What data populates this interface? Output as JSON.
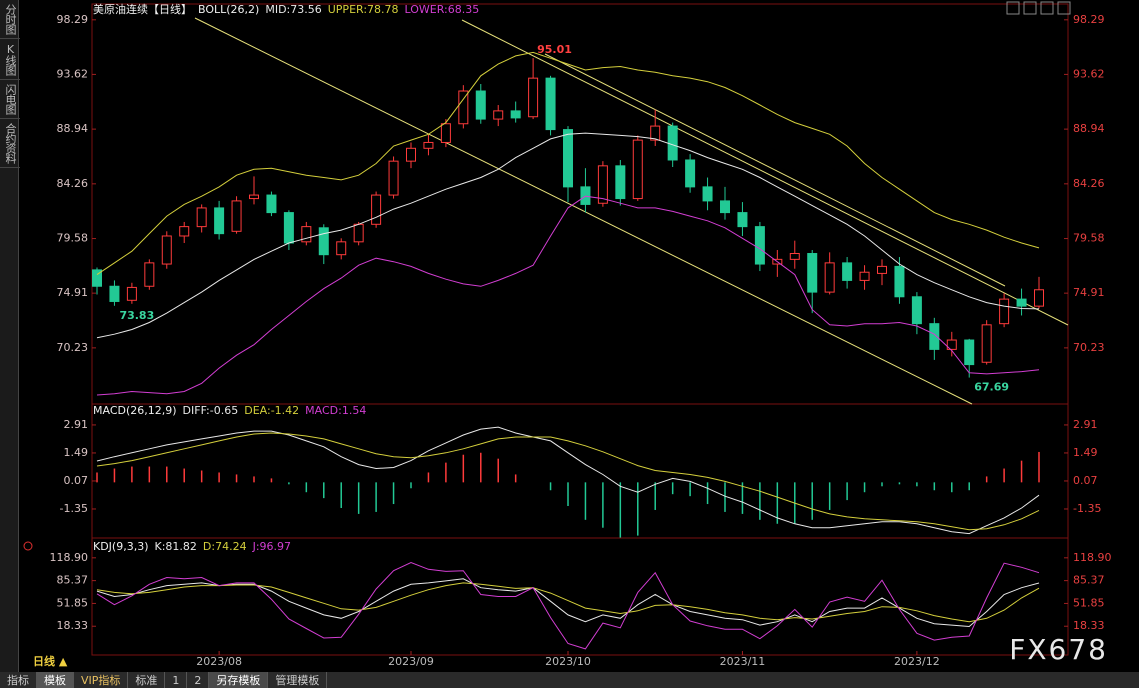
{
  "ui": {
    "sidebar": [
      "分时图",
      "K线图",
      "闪电图",
      "合约资料"
    ],
    "period": "日线 ▲",
    "tabs": [
      "指标",
      "模板",
      "VIP指标",
      "标准",
      "1",
      "2",
      "另存模板",
      "管理模板"
    ],
    "watermark": "FX678"
  },
  "chart_data": [
    {
      "type": "candlestick",
      "title": "美原油连续【日线】",
      "indicator": "BOLL(26,2)",
      "categories": [
        null,
        null,
        null,
        null,
        null,
        null,
        null,
        "2023/08",
        null,
        null,
        null,
        null,
        null,
        null,
        null,
        null,
        null,
        null,
        "2023/09",
        null,
        null,
        null,
        null,
        null,
        null,
        null,
        null,
        "2023/10",
        null,
        null,
        null,
        null,
        null,
        null,
        null,
        null,
        null,
        "2023/11",
        null,
        null,
        null,
        null,
        null,
        null,
        null,
        null,
        null,
        "2023/12",
        null,
        null,
        null,
        null,
        null,
        null,
        null
      ],
      "open": [
        76.9,
        75.5,
        74.3,
        75.5,
        77.4,
        79.8,
        80.6,
        82.2,
        80.2,
        83,
        83.3,
        81.8,
        79.3,
        80.5,
        78.2,
        79.3,
        80.8,
        83.3,
        86.2,
        87.3,
        87.8,
        89.4,
        92.2,
        89.8,
        90.5,
        90,
        93.3,
        88.9,
        84,
        82.6,
        85.8,
        83,
        88,
        89.2,
        86.3,
        84,
        82.8,
        81.8,
        80.6,
        77.4,
        77.8,
        78.3,
        75,
        77.5,
        76,
        76.6,
        77.2,
        74.6,
        72.3,
        70.1,
        70.9,
        69,
        72.3,
        74.4,
        73.8
      ],
      "high": [
        77.1,
        76,
        75.8,
        77.8,
        80.2,
        81,
        82.5,
        82.8,
        83.2,
        84.9,
        83.6,
        82,
        81,
        80.8,
        79.6,
        81,
        83.6,
        86.6,
        87.8,
        88.5,
        89.8,
        92.7,
        92.8,
        91,
        91.3,
        95.01,
        93.5,
        89.2,
        85.6,
        86.2,
        86.3,
        88.4,
        90.6,
        89.5,
        86.8,
        84.8,
        84,
        82.7,
        81,
        78.6,
        79.4,
        78.6,
        78.4,
        78,
        77.3,
        77.8,
        78,
        75,
        72.8,
        71.6,
        71,
        72.6,
        74.9,
        75.3,
        76.3
      ],
      "low": [
        74.8,
        73.83,
        74,
        75.2,
        77,
        79.2,
        80.1,
        79.5,
        80,
        82.5,
        81.5,
        78.6,
        79,
        77.4,
        77.8,
        79,
        80.5,
        83,
        85.6,
        86.7,
        87.4,
        89,
        89.4,
        89.2,
        89.5,
        89.8,
        88.4,
        82.7,
        81.8,
        82.3,
        82.4,
        82.8,
        87.5,
        85.7,
        83.5,
        82,
        81.2,
        79.8,
        76.8,
        76.3,
        77,
        73.2,
        74.8,
        75.3,
        75.2,
        75.6,
        74,
        71.4,
        69.2,
        69.5,
        67.69,
        68.8,
        72,
        73,
        73.6
      ],
      "close": [
        75.5,
        74.2,
        75.4,
        77.5,
        79.8,
        80.6,
        82.2,
        80,
        82.8,
        83.3,
        81.8,
        79.2,
        80.6,
        78.2,
        79.3,
        80.8,
        83.3,
        86.2,
        87.3,
        87.8,
        89.4,
        92.2,
        89.8,
        90.5,
        89.9,
        93.3,
        88.9,
        84,
        82.5,
        85.8,
        83,
        88,
        89.2,
        86.3,
        84,
        82.8,
        81.8,
        80.6,
        77.4,
        77.8,
        78.3,
        75,
        77.5,
        76,
        76.7,
        77.2,
        74.6,
        72.3,
        70.1,
        70.9,
        68.8,
        72.2,
        74.4,
        73.8,
        75.2
      ],
      "up_color": "#ff3b3b",
      "down_color": "#22c995",
      "ylim": [
        65.6,
        99.3
      ],
      "yticks": [
        98.29,
        93.62,
        88.94,
        84.26,
        79.58,
        74.91,
        70.23
      ],
      "series": [
        {
          "name": "MID:73.56",
          "color": "#e8e8e8",
          "values": [
            71.1,
            71.4,
            71.8,
            72.4,
            73.2,
            74.1,
            75,
            76,
            76.9,
            77.8,
            78.5,
            79.2,
            79.6,
            80,
            80.3,
            80.8,
            81.4,
            82.1,
            82.6,
            83.2,
            83.8,
            84.3,
            84.8,
            85.5,
            86.5,
            87.3,
            88.1,
            88.5,
            88.6,
            88.5,
            88.4,
            88.3,
            88.1,
            87.6,
            87.1,
            86.5,
            86,
            85.5,
            84.8,
            84,
            83.2,
            82.4,
            81.6,
            80.8,
            79.8,
            78.6,
            77.4,
            76.5,
            75.8,
            75.2,
            74.6,
            74.1,
            73.8,
            73.6,
            73.56
          ]
        },
        {
          "name": "UPPER:78.78",
          "color": "#d4cf3c",
          "values": [
            76.5,
            77.5,
            78.5,
            80,
            81.5,
            82.5,
            83.2,
            84,
            85,
            85.5,
            85.6,
            85.3,
            85,
            84.8,
            84.6,
            85,
            86,
            87.5,
            88,
            88.5,
            89.5,
            91.5,
            93.5,
            94.5,
            95.2,
            95.5,
            95,
            94.5,
            94,
            94.2,
            94.3,
            94,
            93.8,
            93.5,
            93.3,
            93,
            92.5,
            91.8,
            91,
            90.2,
            89.5,
            89,
            88.5,
            87.5,
            86,
            84.8,
            83.8,
            82.8,
            81.8,
            81.2,
            80.8,
            80.3,
            79.7,
            79.2,
            78.78
          ]
        },
        {
          "name": "LOWER:68.35",
          "color": "#d23ed2",
          "values": [
            66.2,
            66.3,
            66.5,
            66.4,
            66.3,
            66.5,
            67.2,
            68.5,
            69.6,
            70.5,
            71.8,
            73,
            74.2,
            75.3,
            76.2,
            77.3,
            77.9,
            77.6,
            77.2,
            76.6,
            76.1,
            75.7,
            75.5,
            76,
            76.6,
            77.3,
            79.8,
            82.2,
            83.2,
            83,
            82.6,
            82.2,
            82.2,
            81.9,
            81.5,
            81.1,
            80.5,
            79.6,
            78.7,
            77.6,
            76.5,
            73.5,
            72.2,
            72.1,
            72.3,
            72.3,
            72.4,
            72.1,
            71.4,
            70,
            68.1,
            68,
            68.1,
            68.2,
            68.35
          ]
        }
      ]
    },
    {
      "type": "macd",
      "indicator": "MACD(26,12,9)",
      "ylim": [
        -2.72,
        3.87
      ],
      "yticks": [
        2.91,
        1.49,
        0.07,
        -1.35
      ],
      "series": [
        {
          "name": "DIFF:-0.65",
          "color": "#e8e8e8",
          "values": [
            1.08,
            1.3,
            1.5,
            1.7,
            1.9,
            2.05,
            2.2,
            2.35,
            2.5,
            2.6,
            2.6,
            2.4,
            2.1,
            1.8,
            1.3,
            0.9,
            0.7,
            0.75,
            1.1,
            1.6,
            2.0,
            2.4,
            2.7,
            2.8,
            2.5,
            2.3,
            2.1,
            1.5,
            0.9,
            0.4,
            -0.2,
            -0.5,
            -0.1,
            0.2,
            0.05,
            -0.3,
            -0.7,
            -1.0,
            -1.4,
            -1.8,
            -2.1,
            -2.3,
            -2.3,
            -2.2,
            -2.1,
            -2.0,
            -2.0,
            -2.1,
            -2.3,
            -2.5,
            -2.6,
            -2.2,
            -1.8,
            -1.3,
            -0.65
          ]
        },
        {
          "name": "DEA:-1.42",
          "color": "#d4cf3c",
          "values": [
            0.83,
            0.95,
            1.1,
            1.3,
            1.5,
            1.7,
            1.9,
            2.1,
            2.3,
            2.45,
            2.5,
            2.45,
            2.35,
            2.2,
            1.95,
            1.7,
            1.45,
            1.3,
            1.25,
            1.35,
            1.5,
            1.7,
            1.95,
            2.2,
            2.3,
            2.3,
            2.3,
            2.1,
            1.85,
            1.55,
            1.2,
            0.85,
            0.6,
            0.5,
            0.4,
            0.25,
            0.05,
            -0.2,
            -0.45,
            -0.75,
            -1.05,
            -1.35,
            -1.6,
            -1.75,
            -1.85,
            -1.9,
            -1.95,
            -2.0,
            -2.1,
            -2.25,
            -2.4,
            -2.35,
            -2.15,
            -1.85,
            -1.42
          ]
        },
        {
          "name": "MACD:1.54",
          "color": "#d23ed2",
          "up_color": "#ff3b3b",
          "down_color": "#22c995",
          "values": [
            0.5,
            0.7,
            0.8,
            0.8,
            0.8,
            0.7,
            0.6,
            0.5,
            0.4,
            0.3,
            0.2,
            -0.1,
            -0.5,
            -0.8,
            -1.3,
            -1.6,
            -1.5,
            -1.1,
            -0.3,
            0.5,
            1.0,
            1.4,
            1.5,
            1.2,
            0.4,
            0,
            -0.4,
            -1.2,
            -1.9,
            -2.3,
            -2.8,
            -2.7,
            -1.4,
            -0.6,
            -0.7,
            -1.1,
            -1.5,
            -1.6,
            -1.9,
            -2.1,
            -2.1,
            -1.9,
            -1.4,
            -0.9,
            -0.5,
            -0.2,
            -0.1,
            -0.2,
            -0.4,
            -0.5,
            -0.4,
            0.3,
            0.7,
            1.1,
            1.54
          ]
        }
      ]
    },
    {
      "type": "line",
      "indicator": "KDJ(9,3,3)",
      "ylim": [
        -22.5,
        145.1
      ],
      "yticks": [
        {
          "value": 118.9,
          "label": "118.90"
        },
        85.37,
        51.85,
        18.33
      ],
      "series": [
        {
          "name": "K:81.82",
          "color": "#e8e8e8",
          "values": [
            70,
            62,
            65,
            72,
            78,
            80,
            82,
            78,
            80,
            80,
            70,
            55,
            45,
            35,
            30,
            40,
            55,
            70,
            80,
            82,
            85,
            88,
            75,
            72,
            70,
            75,
            55,
            35,
            25,
            35,
            30,
            50,
            65,
            50,
            40,
            35,
            30,
            28,
            20,
            25,
            35,
            25,
            40,
            45,
            45,
            60,
            45,
            30,
            22,
            20,
            18,
            40,
            65,
            75,
            81.82
          ]
        },
        {
          "name": "D:74.24",
          "color": "#d4cf3c",
          "values": [
            72,
            68,
            66,
            68,
            72,
            76,
            78,
            78,
            79,
            79,
            76,
            68,
            60,
            52,
            44,
            42,
            46,
            55,
            64,
            72,
            78,
            82,
            80,
            77,
            74,
            75,
            67,
            56,
            45,
            41,
            37,
            41,
            49,
            50,
            47,
            43,
            38,
            35,
            30,
            28,
            31,
            29,
            33,
            37,
            40,
            47,
            46,
            41,
            34,
            29,
            25,
            30,
            42,
            60,
            74.24
          ]
        },
        {
          "name": "J:96.97",
          "color": "#d23ed2",
          "values": [
            66,
            50,
            63,
            80,
            90,
            88,
            90,
            78,
            82,
            82,
            58,
            29,
            15,
            1,
            2,
            36,
            73,
            100,
            112,
            102,
            99,
            100,
            65,
            62,
            62,
            75,
            31,
            -7,
            -15,
            23,
            16,
            68,
            97,
            50,
            26,
            19,
            14,
            14,
            0,
            19,
            43,
            17,
            54,
            61,
            55,
            86,
            43,
            8,
            -2,
            2,
            4,
            60,
            111,
            105,
            96.97
          ]
        }
      ]
    }
  ]
}
